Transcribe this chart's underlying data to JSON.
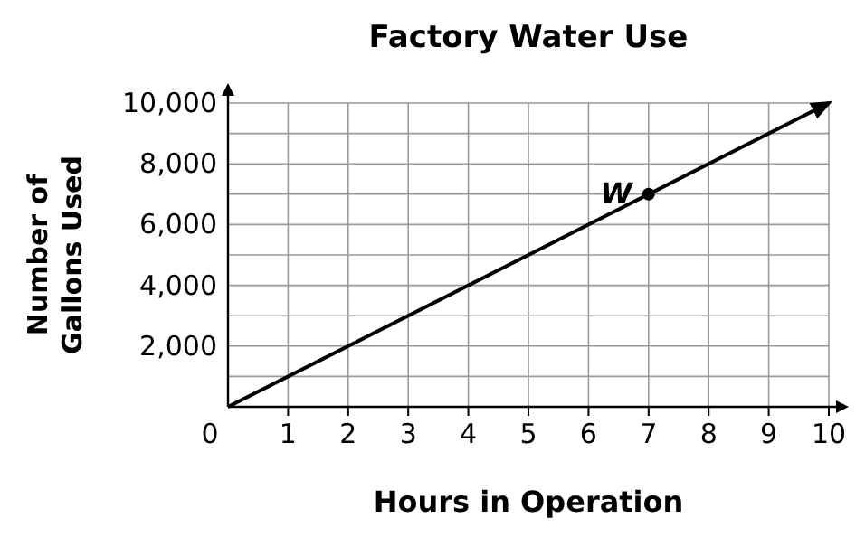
{
  "chart_data": {
    "type": "line",
    "title": "Factory Water Use",
    "xlabel": "Hours in Operation",
    "ylabel": "Number of Gallons Used",
    "xlim": [
      0,
      10
    ],
    "ylim": [
      0,
      10000
    ],
    "xticks": [
      {
        "value": 0,
        "label": "0"
      },
      1,
      2,
      3,
      4,
      5,
      6,
      7,
      8,
      9,
      10
    ],
    "yticks": [
      {
        "value": 0,
        "label": null
      },
      {
        "value": 1000,
        "label": null
      },
      {
        "value": 2000,
        "label": "2,000"
      },
      {
        "value": 3000,
        "label": null
      },
      {
        "value": 4000,
        "label": "4,000"
      },
      {
        "value": 5000,
        "label": null
      },
      {
        "value": 6000,
        "label": "6,000"
      },
      {
        "value": 7000,
        "label": null
      },
      {
        "value": 8000,
        "label": "8,000"
      },
      {
        "value": 9000,
        "label": null
      },
      {
        "value": 10000,
        "label": "10,000"
      }
    ],
    "grid": true,
    "marker": "none",
    "series": [
      {
        "color": "#000000",
        "x": [
          0,
          10
        ],
        "values": [
          0,
          10000
        ]
      },
      {
        "type": "scatter",
        "color": "#000000",
        "x": [
          7
        ],
        "values": [
          7000
        ],
        "marker": "circle"
      }
    ],
    "annotations": [
      {
        "text": "W",
        "x": 7,
        "y": 7000
      }
    ]
  }
}
